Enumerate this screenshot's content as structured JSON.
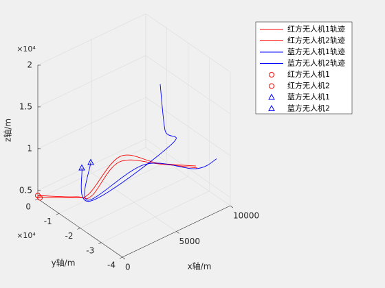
{
  "chart_data": {
    "type": "line3d",
    "xlabel": "x轴/m",
    "ylabel": "y轴/m",
    "zlabel": "z轴/m",
    "y_exponent": "×10⁴",
    "z_exponent": "×10⁴",
    "xlim": [
      0,
      10000
    ],
    "ylim": [
      -40000,
      0
    ],
    "zlim": [
      4000,
      20000
    ],
    "xticks": [
      0,
      5000,
      10000
    ],
    "yticks": [
      {
        "value": 0,
        "label": "0"
      },
      {
        "value": -10000,
        "label": "-1"
      },
      {
        "value": -20000,
        "label": "-2"
      },
      {
        "value": -30000,
        "label": "-3"
      },
      {
        "value": -40000,
        "label": "-4"
      }
    ],
    "zticks": [
      {
        "value": 5000,
        "label": "0.5"
      },
      {
        "value": 10000,
        "label": "1"
      },
      {
        "value": 15000,
        "label": "1.5"
      },
      {
        "value": 20000,
        "label": "2"
      }
    ],
    "grid": true,
    "legend": "northeast-outside",
    "series": [
      {
        "name": "红方无人机1轨迹",
        "color": "#ff0000",
        "style": "line",
        "x": [
          0,
          1902,
          2263,
          5241,
          6768,
          8951
        ],
        "y": [
          0,
          -8160,
          -12840,
          -12280,
          -22360,
          -29090
        ],
        "z": [
          4400,
          4500,
          5500,
          8000,
          8000,
          7500
        ]
      },
      {
        "name": "红方无人机2轨迹",
        "color": "#ff0000",
        "style": "line",
        "x": [
          0,
          2000,
          2400,
          5000,
          7000,
          9000
        ],
        "y": [
          -1000,
          -9000,
          -13500,
          -13000,
          -22000,
          -29500
        ],
        "z": [
          4300,
          4500,
          5300,
          7600,
          7700,
          7300
        ]
      },
      {
        "name": "蓝方无人机1轨迹",
        "color": "#0000ff",
        "style": "line",
        "x": [
          2868,
          2400,
          8385,
          7104,
          7172
        ],
        "y": [
          -6170,
          -12800,
          -20600,
          -23900,
          -21270
        ],
        "z": [
          7000,
          4500,
          9000,
          12000,
          17000
        ]
      },
      {
        "name": "蓝方无人机2轨迹",
        "color": "#0000ff",
        "style": "line",
        "x": [
          3461,
          2308,
          6568,
          9065,
          11000
        ],
        "y": [
          -7370,
          -11960,
          -16880,
          -28500,
          -28500
        ],
        "z": [
          7500,
          4500,
          7000,
          7000,
          7000
        ]
      },
      {
        "name": "红方无人机1",
        "color": "#ff0000",
        "style": "circle",
        "x": [
          0
        ],
        "y": [
          0
        ],
        "z": [
          4400
        ]
      },
      {
        "name": "红方无人机2",
        "color": "#ff0000",
        "style": "circle",
        "x": [
          0
        ],
        "y": [
          -1000
        ],
        "z": [
          4300
        ]
      },
      {
        "name": "蓝方无人机1",
        "color": "#0000ff",
        "style": "triangle",
        "x": [
          2868
        ],
        "y": [
          -6170
        ],
        "z": [
          7000
        ]
      },
      {
        "name": "蓝方无人机2",
        "color": "#0000ff",
        "style": "triangle",
        "x": [
          3461
        ],
        "y": [
          -7370
        ],
        "z": [
          7500
        ]
      }
    ]
  }
}
